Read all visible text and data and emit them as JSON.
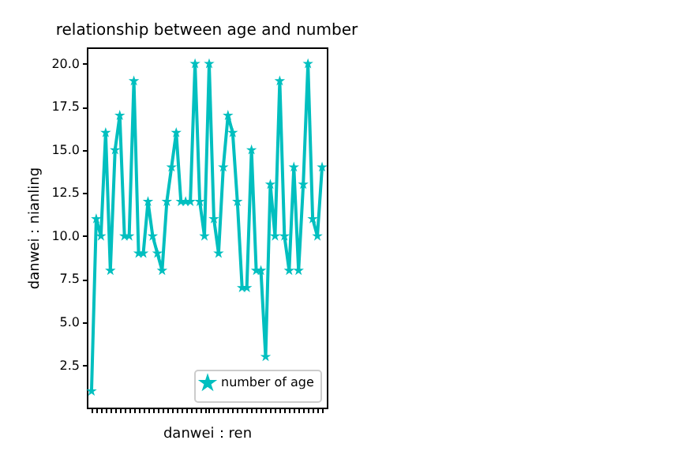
{
  "chart_data": {
    "type": "line",
    "title": "relationship between age and number",
    "xlabel": "danwei：ren",
    "ylabel": "danwei：nianling",
    "categories": [
      null,
      null,
      null,
      null,
      null,
      null,
      null,
      null,
      null,
      null,
      null,
      null,
      null,
      null,
      null,
      null,
      null,
      null,
      null,
      null,
      null,
      null,
      null,
      null,
      null,
      null,
      null,
      null,
      null,
      null,
      null,
      null,
      null,
      null,
      null,
      null,
      null,
      null,
      null,
      null,
      null,
      null,
      null,
      null,
      null,
      null,
      null,
      null,
      null,
      null
    ],
    "series": [
      {
        "name": "number of age",
        "color": "#00bfbf",
        "values": [
          1,
          11,
          10,
          16,
          8,
          15,
          17,
          10,
          10,
          19,
          9,
          9,
          12,
          10,
          9,
          8,
          12,
          14,
          16,
          12,
          12,
          12,
          20,
          12,
          10,
          20,
          11,
          9,
          14,
          17,
          16,
          12,
          7,
          7,
          15,
          8,
          8,
          3,
          13,
          10,
          19,
          10,
          8,
          14,
          8,
          13,
          20,
          11,
          10,
          14
        ]
      }
    ],
    "ylim": [
      0.05,
      20.95
    ],
    "yticks": [
      {
        "value": 2.5,
        "label": "2.5"
      },
      {
        "value": 5,
        "label": "5.0"
      },
      {
        "value": 7.5,
        "label": "7.5"
      },
      {
        "value": 10,
        "label": "10.0"
      },
      {
        "value": 12.5,
        "label": "12.5"
      },
      {
        "value": 15,
        "label": "15.0"
      },
      {
        "value": 17.5,
        "label": "17.5"
      },
      {
        "value": 20,
        "label": "20.0"
      }
    ],
    "tick_labels": "y",
    "grid": false,
    "legend": "bottom right",
    "marker": "star",
    "line_style": "solid"
  }
}
